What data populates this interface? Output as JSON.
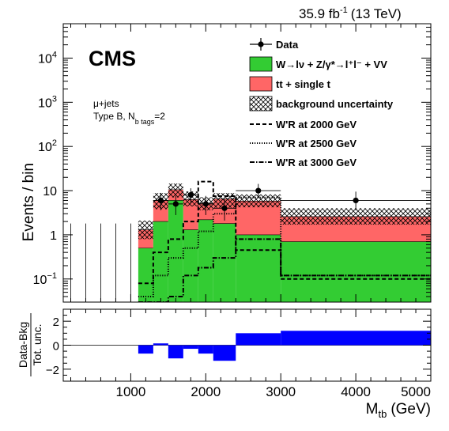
{
  "chart_data": [
    {
      "type": "bar",
      "panel": "main",
      "lumi_label": "35.9 fb",
      "lumi_exponent": "-1",
      "energy_label": "(13 TeV)",
      "experiment": "CMS",
      "annotation_line1": "μ+jets",
      "annotation_line2_pre": "Type B, N",
      "annotation_line2_sub": "b tags",
      "annotation_line2_post": "=2",
      "ylabel": "Events / bin",
      "y_log": true,
      "ylim": [
        0.03,
        60000
      ],
      "xlim": [
        100,
        5000
      ],
      "y_ticks": [
        {
          "value": 0.1,
          "base": "10",
          "exp": "−1"
        },
        {
          "value": 1,
          "base": "1",
          "exp": ""
        },
        {
          "value": 10,
          "base": "10",
          "exp": ""
        },
        {
          "value": 100,
          "base": "10",
          "exp": "2"
        },
        {
          "value": 1000,
          "base": "10",
          "exp": "3"
        },
        {
          "value": 10000,
          "base": "10",
          "exp": "4"
        }
      ],
      "bin_edges": [
        100,
        300,
        500,
        700,
        900,
        1100,
        1300,
        1500,
        1700,
        1900,
        2100,
        2400,
        3000,
        5000
      ],
      "series": [
        {
          "name": "W→lν + Z/γ*→l⁺l⁻ + VV",
          "color": "#33cc33",
          "values": [
            0,
            0,
            0,
            0,
            0,
            0.5,
            2.0,
            6.0,
            1.3,
            2.2,
            1.8,
            1.0,
            0.7
          ]
        },
        {
          "name": "tt + single t",
          "color": "#ff6666",
          "values": [
            0,
            0,
            0,
            0,
            0,
            0.8,
            4.0,
            4.5,
            5.0,
            3.0,
            4.7,
            4.8,
            1.9
          ]
        }
      ],
      "uncertainty": {
        "name": "background uncertainty",
        "up": [
          0,
          0,
          0,
          0,
          0,
          2.1,
          8.8,
          14.5,
          9.6,
          7.1,
          8.8,
          8.2,
          4.0
        ],
        "down": [
          0,
          0,
          0,
          0,
          0,
          0.8,
          3.8,
          7.0,
          4.4,
          3.6,
          4.1,
          4.2,
          1.7
        ]
      },
      "signals": [
        {
          "name": "W'R at 2000 GeV",
          "style": "dashed",
          "values": [
            0,
            0,
            0,
            0,
            0,
            0.08,
            0.4,
            0.8,
            2.0,
            16,
            7.5,
            0.45,
            0.1
          ]
        },
        {
          "name": "W'R at 2500 GeV",
          "style": "dotted",
          "values": [
            0,
            0,
            0,
            0,
            0,
            0.04,
            0.12,
            0.3,
            0.5,
            1.2,
            3.0,
            7.0,
            0.12
          ]
        },
        {
          "name": "W'R at 3000 GeV",
          "style": "dashdot",
          "values": [
            0,
            0,
            0,
            0,
            0,
            0.01,
            0.03,
            0.04,
            0.12,
            0.18,
            0.3,
            0.8,
            0.12
          ]
        }
      ],
      "data_points": [
        {
          "x": 1400,
          "y": 6.0,
          "xerr": 100,
          "ylo": 2.4,
          "yhi": 2.9
        },
        {
          "x": 1600,
          "y": 5.0,
          "xerr": 100,
          "ylo": 2.2,
          "yhi": 2.6
        },
        {
          "x": 1800,
          "y": 8.0,
          "xerr": 100,
          "ylo": 2.9,
          "yhi": 3.3
        },
        {
          "x": 2000,
          "y": 5.0,
          "xerr": 100,
          "ylo": 2.2,
          "yhi": 2.6
        },
        {
          "x": 2250,
          "y": 4.0,
          "xerr": 150,
          "ylo": 1.9,
          "yhi": 2.4
        },
        {
          "x": 2700,
          "y": 10.0,
          "xerr": 300,
          "ylo": 3.1,
          "yhi": 4.2
        },
        {
          "x": 4000,
          "y": 6.0,
          "xerr": 1000,
          "ylo": 2.4,
          "yhi": 3.5
        }
      ],
      "empty_bin_error_up": 1.8,
      "legend": [
        {
          "key": "data",
          "label": "Data"
        },
        {
          "key": "wjets",
          "label": "W→lν + Z/γ*→l⁺l⁻ + VV"
        },
        {
          "key": "ttbar",
          "label": "tt + single t"
        },
        {
          "key": "unc",
          "label": "background uncertainty"
        },
        {
          "key": "sig2000",
          "label": "W'R at 2000 GeV"
        },
        {
          "key": "sig2500",
          "label": "W'R at 2500 GeV"
        },
        {
          "key": "sig3000",
          "label": "W'R at 3000 GeV"
        }
      ],
      "legend_placement": "top-right"
    },
    {
      "type": "bar",
      "panel": "ratio",
      "ylabel_top": "Data-Bkg",
      "ylabel_bottom": "Tot. unc.",
      "xlabel": "M",
      "xlabel_sub": "tb",
      "xlabel_unit": "(GeV)",
      "ylim": [
        -3,
        3
      ],
      "y_ticks": [
        -2,
        0,
        2
      ],
      "x_ticks": [
        1000,
        2000,
        3000,
        4000,
        5000
      ],
      "bin_edges": [
        1100,
        1300,
        1500,
        1700,
        1900,
        2100,
        2400,
        3000,
        5000
      ],
      "values": [
        -0.7,
        0.15,
        -1.1,
        -0.3,
        -0.7,
        -1.3,
        1.0,
        1.2
      ],
      "color": "#0000ff"
    }
  ]
}
